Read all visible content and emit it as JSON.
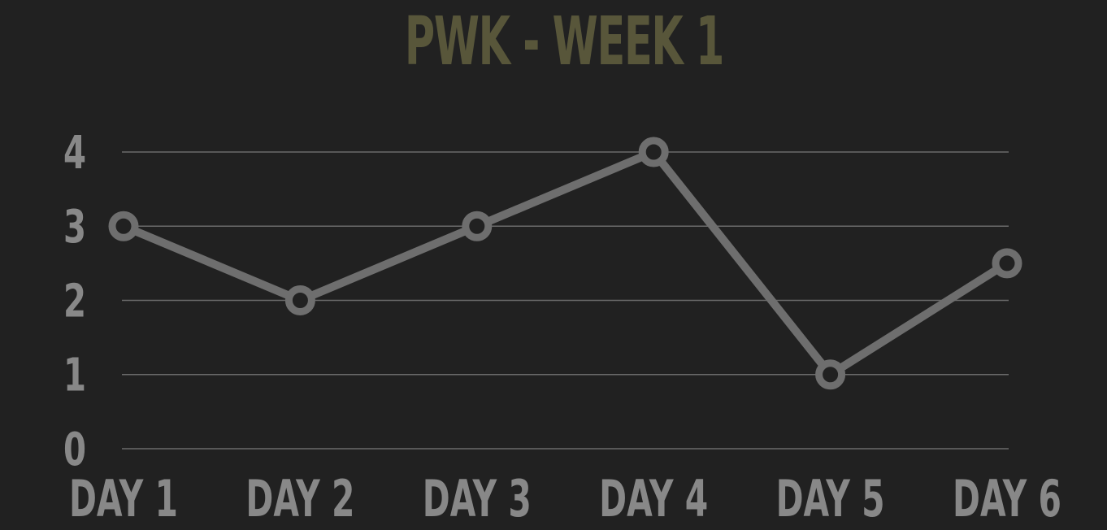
{
  "chart_data": {
    "type": "line",
    "title": "PWK - WEEK 1",
    "categories": [
      "DAY 1",
      "DAY 2",
      "DAY 3",
      "DAY 4",
      "DAY 5",
      "DAY 6"
    ],
    "series": [
      {
        "values": [
          3,
          2,
          3,
          4,
          1,
          2.5
        ]
      }
    ],
    "yticks": [
      "0",
      "1",
      "2",
      "3",
      "4"
    ],
    "ylim": [
      0,
      4
    ],
    "grid": true,
    "legend": "none"
  },
  "colors": {
    "background": "#212121",
    "title": "#58563a",
    "line": "#6e6e6e",
    "grid": "#6a6a6a",
    "tick_labels": "#888888"
  }
}
